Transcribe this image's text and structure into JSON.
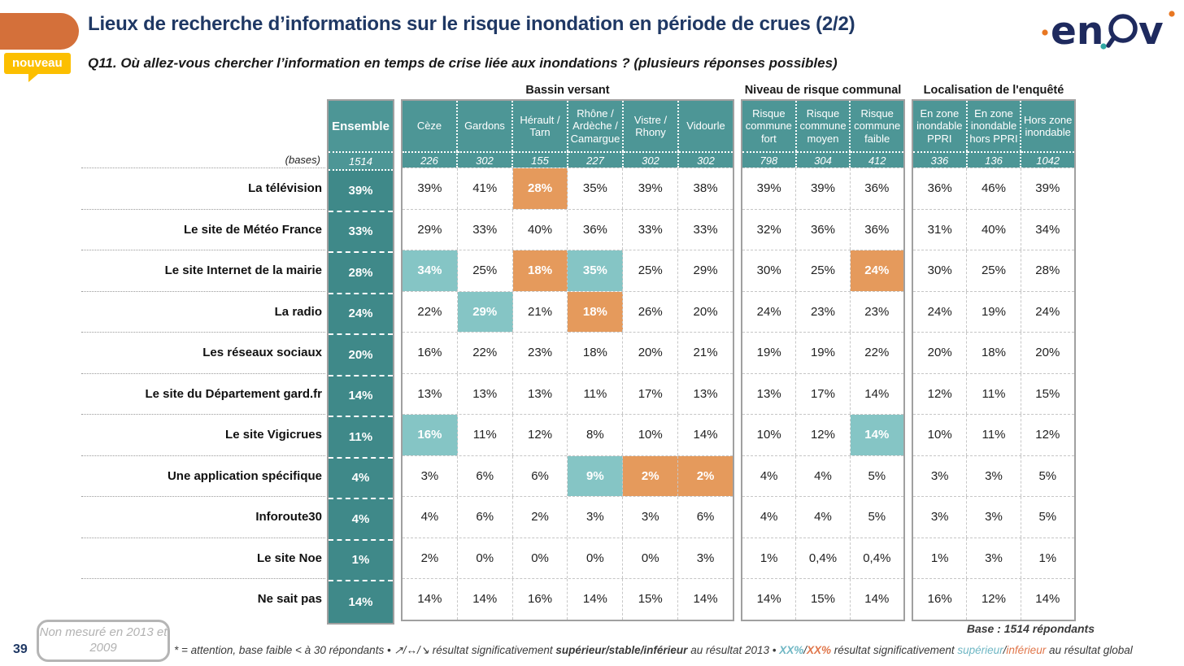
{
  "page": {
    "title": "Lieux de recherche d’informations sur le risque inondation en période de crues (2/2)",
    "subtitle": "Q11. Où allez-vous chercher l’information en temps de crise liée aux inondations ? (plusieurs réponses possibles)",
    "badge": "nouveau",
    "page_number": "39",
    "not_measured_note": "Non mesuré en 2013 et 2009",
    "base_note": "Base : 1514 répondants",
    "logo_text": "enov"
  },
  "colors": {
    "accent_orange": "#d4703a",
    "badge_yellow": "#fcbf00",
    "title_navy": "#1f3864",
    "header_teal": "#4d9696",
    "ensemble_teal": "#3f8989",
    "highlight_teal": "#85c5c5",
    "highlight_orange": "#e59a5c"
  },
  "table": {
    "bases_label": "(bases)",
    "ensemble": {
      "header": "Ensemble",
      "base": "1514"
    },
    "groups": [
      {
        "title": "Bassin versant",
        "columns": [
          "Cèze",
          "Gardons",
          "Hérault / Tarn",
          "Rhône / Ardèche / Camargue",
          "Vistre / Rhony",
          "Vidourle"
        ],
        "bases": [
          "226",
          "302",
          "155",
          "227",
          "302",
          "302"
        ]
      },
      {
        "title": "Niveau de risque communal",
        "columns": [
          "Risque commune fort",
          "Risque commune moyen",
          "Risque commune faible"
        ],
        "bases": [
          "798",
          "304",
          "412"
        ]
      },
      {
        "title": "Localisation de l'enquêté",
        "columns": [
          "En zone inondable PPRI",
          "En zone inondable hors PPRI",
          "Hors zone inondable"
        ],
        "bases": [
          "336",
          "136",
          "1042"
        ]
      }
    ],
    "rows": [
      {
        "label": "La télévision",
        "ensemble": "39%",
        "groups": [
          [
            {
              "v": "39%"
            },
            {
              "v": "41%"
            },
            {
              "v": "28%",
              "h": "orange"
            },
            {
              "v": "35%"
            },
            {
              "v": "39%"
            },
            {
              "v": "38%"
            }
          ],
          [
            {
              "v": "39%"
            },
            {
              "v": "39%"
            },
            {
              "v": "36%"
            }
          ],
          [
            {
              "v": "36%"
            },
            {
              "v": "46%"
            },
            {
              "v": "39%"
            }
          ]
        ]
      },
      {
        "label": "Le site de Météo France",
        "ensemble": "33%",
        "groups": [
          [
            {
              "v": "29%"
            },
            {
              "v": "33%"
            },
            {
              "v": "40%"
            },
            {
              "v": "36%"
            },
            {
              "v": "33%"
            },
            {
              "v": "33%"
            }
          ],
          [
            {
              "v": "32%"
            },
            {
              "v": "36%"
            },
            {
              "v": "36%"
            }
          ],
          [
            {
              "v": "31%"
            },
            {
              "v": "40%"
            },
            {
              "v": "34%"
            }
          ]
        ]
      },
      {
        "label": "Le site Internet de la mairie",
        "ensemble": "28%",
        "groups": [
          [
            {
              "v": "34%",
              "h": "teal"
            },
            {
              "v": "25%"
            },
            {
              "v": "18%",
              "h": "orange"
            },
            {
              "v": "35%",
              "h": "teal"
            },
            {
              "v": "25%"
            },
            {
              "v": "29%"
            }
          ],
          [
            {
              "v": "30%"
            },
            {
              "v": "25%"
            },
            {
              "v": "24%",
              "h": "orange"
            }
          ],
          [
            {
              "v": "30%"
            },
            {
              "v": "25%"
            },
            {
              "v": "28%"
            }
          ]
        ]
      },
      {
        "label": "La radio",
        "ensemble": "24%",
        "groups": [
          [
            {
              "v": "22%"
            },
            {
              "v": "29%",
              "h": "teal"
            },
            {
              "v": "21%"
            },
            {
              "v": "18%",
              "h": "orange"
            },
            {
              "v": "26%"
            },
            {
              "v": "20%"
            }
          ],
          [
            {
              "v": "24%"
            },
            {
              "v": "23%"
            },
            {
              "v": "23%"
            }
          ],
          [
            {
              "v": "24%"
            },
            {
              "v": "19%"
            },
            {
              "v": "24%"
            }
          ]
        ]
      },
      {
        "label": "Les réseaux sociaux",
        "ensemble": "20%",
        "groups": [
          [
            {
              "v": "16%"
            },
            {
              "v": "22%"
            },
            {
              "v": "23%"
            },
            {
              "v": "18%"
            },
            {
              "v": "20%"
            },
            {
              "v": "21%"
            }
          ],
          [
            {
              "v": "19%"
            },
            {
              "v": "19%"
            },
            {
              "v": "22%"
            }
          ],
          [
            {
              "v": "20%"
            },
            {
              "v": "18%"
            },
            {
              "v": "20%"
            }
          ]
        ]
      },
      {
        "label": "Le site du Département gard.fr",
        "ensemble": "14%",
        "groups": [
          [
            {
              "v": "13%"
            },
            {
              "v": "13%"
            },
            {
              "v": "13%"
            },
            {
              "v": "11%"
            },
            {
              "v": "17%"
            },
            {
              "v": "13%"
            }
          ],
          [
            {
              "v": "13%"
            },
            {
              "v": "17%"
            },
            {
              "v": "14%"
            }
          ],
          [
            {
              "v": "12%"
            },
            {
              "v": "11%"
            },
            {
              "v": "15%"
            }
          ]
        ]
      },
      {
        "label": "Le site Vigicrues",
        "ensemble": "11%",
        "groups": [
          [
            {
              "v": "16%",
              "h": "teal"
            },
            {
              "v": "11%"
            },
            {
              "v": "12%"
            },
            {
              "v": "8%"
            },
            {
              "v": "10%"
            },
            {
              "v": "14%"
            }
          ],
          [
            {
              "v": "10%"
            },
            {
              "v": "12%"
            },
            {
              "v": "14%",
              "h": "teal"
            }
          ],
          [
            {
              "v": "10%"
            },
            {
              "v": "11%"
            },
            {
              "v": "12%"
            }
          ]
        ]
      },
      {
        "label": "Une application spécifique",
        "ensemble": "4%",
        "groups": [
          [
            {
              "v": "3%"
            },
            {
              "v": "6%"
            },
            {
              "v": "6%"
            },
            {
              "v": "9%",
              "h": "teal"
            },
            {
              "v": "2%",
              "h": "orange"
            },
            {
              "v": "2%",
              "h": "orange"
            }
          ],
          [
            {
              "v": "4%"
            },
            {
              "v": "4%"
            },
            {
              "v": "5%"
            }
          ],
          [
            {
              "v": "3%"
            },
            {
              "v": "3%"
            },
            {
              "v": "5%"
            }
          ]
        ]
      },
      {
        "label": "Inforoute30",
        "ensemble": "4%",
        "groups": [
          [
            {
              "v": "4%"
            },
            {
              "v": "6%"
            },
            {
              "v": "2%"
            },
            {
              "v": "3%"
            },
            {
              "v": "3%"
            },
            {
              "v": "6%"
            }
          ],
          [
            {
              "v": "4%"
            },
            {
              "v": "4%"
            },
            {
              "v": "5%"
            }
          ],
          [
            {
              "v": "3%"
            },
            {
              "v": "3%"
            },
            {
              "v": "5%"
            }
          ]
        ]
      },
      {
        "label": "Le site Noe",
        "ensemble": "1%",
        "groups": [
          [
            {
              "v": "2%"
            },
            {
              "v": "0%"
            },
            {
              "v": "0%"
            },
            {
              "v": "0%"
            },
            {
              "v": "0%"
            },
            {
              "v": "3%"
            }
          ],
          [
            {
              "v": "1%"
            },
            {
              "v": "0,4%"
            },
            {
              "v": "0,4%"
            }
          ],
          [
            {
              "v": "1%"
            },
            {
              "v": "3%"
            },
            {
              "v": "1%"
            }
          ]
        ]
      },
      {
        "label": "Ne sait pas",
        "ensemble": "14%",
        "groups": [
          [
            {
              "v": "14%"
            },
            {
              "v": "14%"
            },
            {
              "v": "16%"
            },
            {
              "v": "14%"
            },
            {
              "v": "15%"
            },
            {
              "v": "14%"
            }
          ],
          [
            {
              "v": "14%"
            },
            {
              "v": "15%"
            },
            {
              "v": "14%"
            }
          ],
          [
            {
              "v": "16%"
            },
            {
              "v": "12%"
            },
            {
              "v": "14%"
            }
          ]
        ]
      }
    ]
  },
  "footnote": {
    "segments": [
      {
        "t": "* = attention, base faible < à 30 répondants • ",
        "s": "plain"
      },
      {
        "t": "↗/↔/↘",
        "s": "plain"
      },
      {
        "t": " résultat significativement ",
        "s": "plain"
      },
      {
        "t": "supérieur/stable/inférieur",
        "s": "bold"
      },
      {
        "t": " au résultat 2013 • ",
        "s": "plain"
      },
      {
        "t": "XX%",
        "s": "teal-bold"
      },
      {
        "t": "/",
        "s": "plain"
      },
      {
        "t": "XX%",
        "s": "orange-bold"
      },
      {
        "t": " résultat significativement ",
        "s": "plain"
      },
      {
        "t": "supérieur",
        "s": "teal"
      },
      {
        "t": "/",
        "s": "plain"
      },
      {
        "t": "inférieur",
        "s": "orange"
      },
      {
        "t": " au résultat global",
        "s": "plain"
      }
    ]
  }
}
